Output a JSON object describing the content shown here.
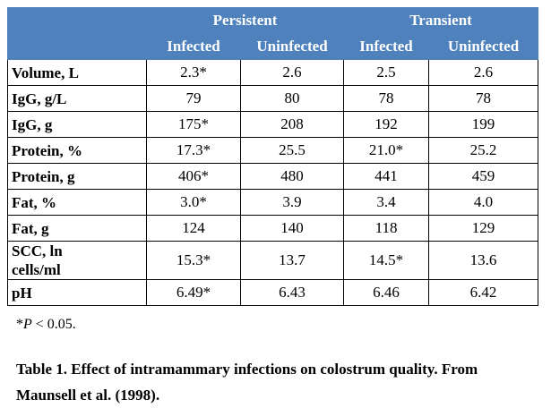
{
  "table": {
    "groups": [
      "Persistent",
      "Transient"
    ],
    "columns": [
      "Infected",
      "Uninfected",
      "Infected",
      "Uninfected"
    ],
    "rows": [
      [
        "Volume, L",
        "2.3*",
        "2.6",
        "2.5",
        "2.6"
      ],
      [
        "IgG, g/L",
        "79",
        "80",
        "78",
        "78"
      ],
      [
        "IgG, g",
        "175*",
        "208",
        "192",
        "199"
      ],
      [
        "Protein, %",
        "17.3*",
        "25.5",
        "21.0*",
        "25.2"
      ],
      [
        "Protein, g",
        "406*",
        "480",
        "441",
        "459"
      ],
      [
        "Fat, %",
        "3.0*",
        "3.9",
        "3.4",
        "4.0"
      ],
      [
        "Fat, g",
        "124",
        "140",
        "118",
        "129"
      ],
      [
        "SCC, ln cells/ml",
        "15.3*",
        "13.7",
        "14.5*",
        "13.6"
      ],
      [
        "pH",
        "6.49*",
        "6.43",
        "6.46",
        "6.42"
      ]
    ]
  },
  "footnote": {
    "marker": "*",
    "symbol": "P",
    "text": " < 0.05."
  },
  "caption": "Table 1.  Effect of intramammary infections on colostrum quality.  From Maunsell et al. (1998)."
}
